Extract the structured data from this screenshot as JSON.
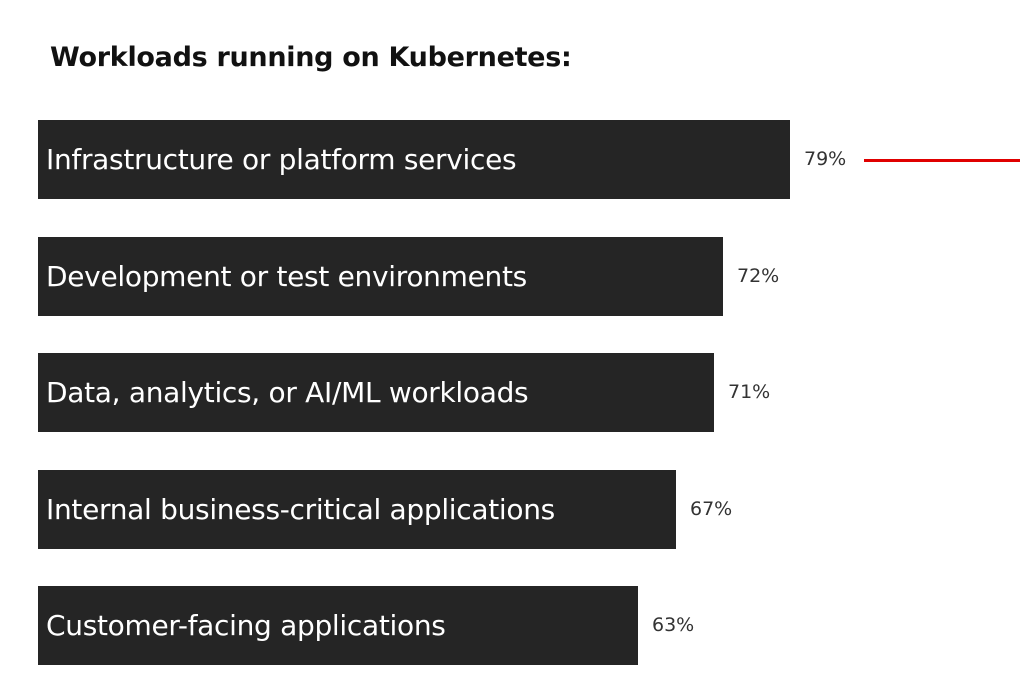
{
  "accent_color": "#e00000",
  "bar_color": "#252525",
  "chart_data": {
    "type": "bar",
    "orientation": "horizontal",
    "title": "Workloads running on Kubernetes:",
    "categories": [
      "Infrastructure or platform services",
      "Development or test environments",
      "Data, analytics, or AI/ML workloads",
      "Internal business-critical applications",
      "Customer-facing applications"
    ],
    "values": [
      79,
      72,
      71,
      67,
      63
    ],
    "value_labels": [
      "79%",
      "72%",
      "71%",
      "67%",
      "63%"
    ],
    "unit": "%",
    "xlim": [
      0,
      100
    ],
    "highlighted_category_index": 0,
    "grid": false,
    "legend": "none"
  }
}
